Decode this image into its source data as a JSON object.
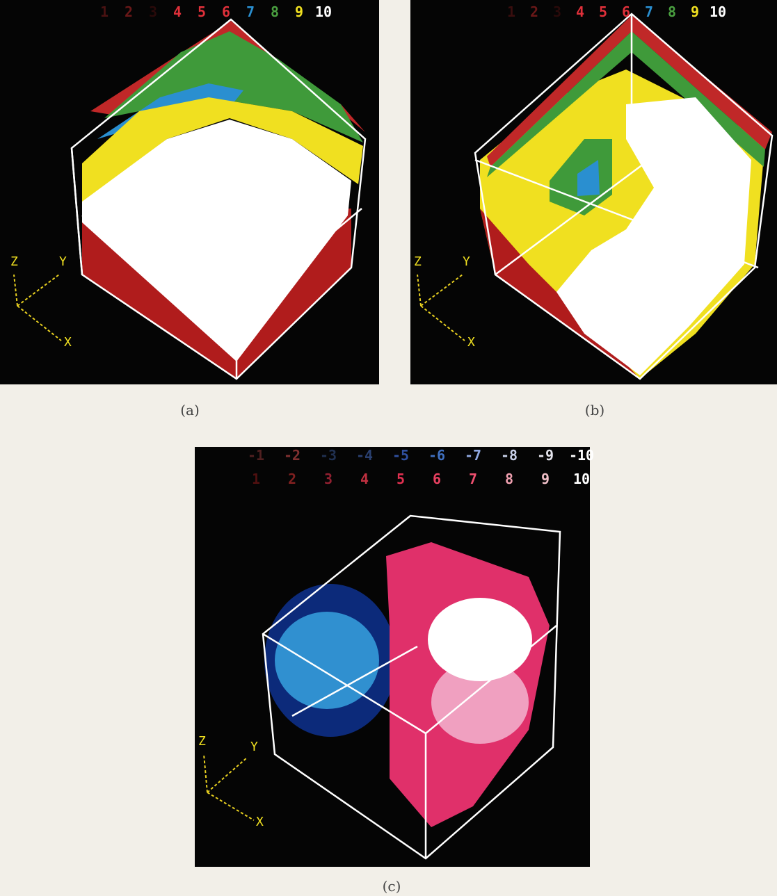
{
  "panels": [
    {
      "label": "(a)",
      "legend_rows": [
        [
          {
            "text": "1",
            "color": "#4a1212"
          },
          {
            "text": "2",
            "color": "#6a1818"
          },
          {
            "text": "3",
            "color": "#2a0a0a"
          },
          {
            "text": "4",
            "color": "#e0303a"
          },
          {
            "text": "5",
            "color": "#e0303a"
          },
          {
            "text": "6",
            "color": "#e0303a"
          },
          {
            "text": "7",
            "color": "#2a8fd0"
          },
          {
            "text": "8",
            "color": "#4aa040"
          },
          {
            "text": "9",
            "color": "#f0e020"
          },
          {
            "text": "10",
            "color": "#ffffff"
          }
        ]
      ],
      "axes": {
        "z": "Z",
        "y": "Y",
        "x": "X"
      }
    },
    {
      "label": "(b)",
      "legend_rows": [
        [
          {
            "text": "1",
            "color": "#3a0e0e"
          },
          {
            "text": "2",
            "color": "#6a1818"
          },
          {
            "text": "3",
            "color": "#2a0a0a"
          },
          {
            "text": "4",
            "color": "#e0303a"
          },
          {
            "text": "5",
            "color": "#e0303a"
          },
          {
            "text": "6",
            "color": "#e0303a"
          },
          {
            "text": "7",
            "color": "#2a8fd0"
          },
          {
            "text": "8",
            "color": "#4aa040"
          },
          {
            "text": "9",
            "color": "#f0e020"
          },
          {
            "text": "10",
            "color": "#ffffff"
          }
        ]
      ],
      "axes": {
        "z": "Z",
        "y": "Y",
        "x": "X"
      }
    },
    {
      "label": "(c)",
      "legend_rows": [
        [
          {
            "text": "-1",
            "color": "#502020"
          },
          {
            "text": "-2",
            "color": "#803030"
          },
          {
            "text": "-3",
            "color": "#203050"
          },
          {
            "text": "-4",
            "color": "#2a4070"
          },
          {
            "text": "-5",
            "color": "#3050a0"
          },
          {
            "text": "-6",
            "color": "#4070c0"
          },
          {
            "text": "-7",
            "color": "#90a8e0"
          },
          {
            "text": "-8",
            "color": "#c8d0e8"
          },
          {
            "text": "-9",
            "color": "#e4e4ec"
          },
          {
            "text": "-10",
            "color": "#ffffff"
          }
        ],
        [
          {
            "text": "1",
            "color": "#501010"
          },
          {
            "text": "2",
            "color": "#802020"
          },
          {
            "text": "3",
            "color": "#902030"
          },
          {
            "text": "4",
            "color": "#c03040"
          },
          {
            "text": "5",
            "color": "#e03050"
          },
          {
            "text": "6",
            "color": "#e84060"
          },
          {
            "text": "7",
            "color": "#f05070"
          },
          {
            "text": "8",
            "color": "#f0a0b0"
          },
          {
            "text": "9",
            "color": "#f0c0c8"
          },
          {
            "text": "10",
            "color": "#ffffff"
          }
        ]
      ],
      "axes": {
        "z": "Z",
        "y": "Y",
        "x": "X"
      }
    }
  ]
}
